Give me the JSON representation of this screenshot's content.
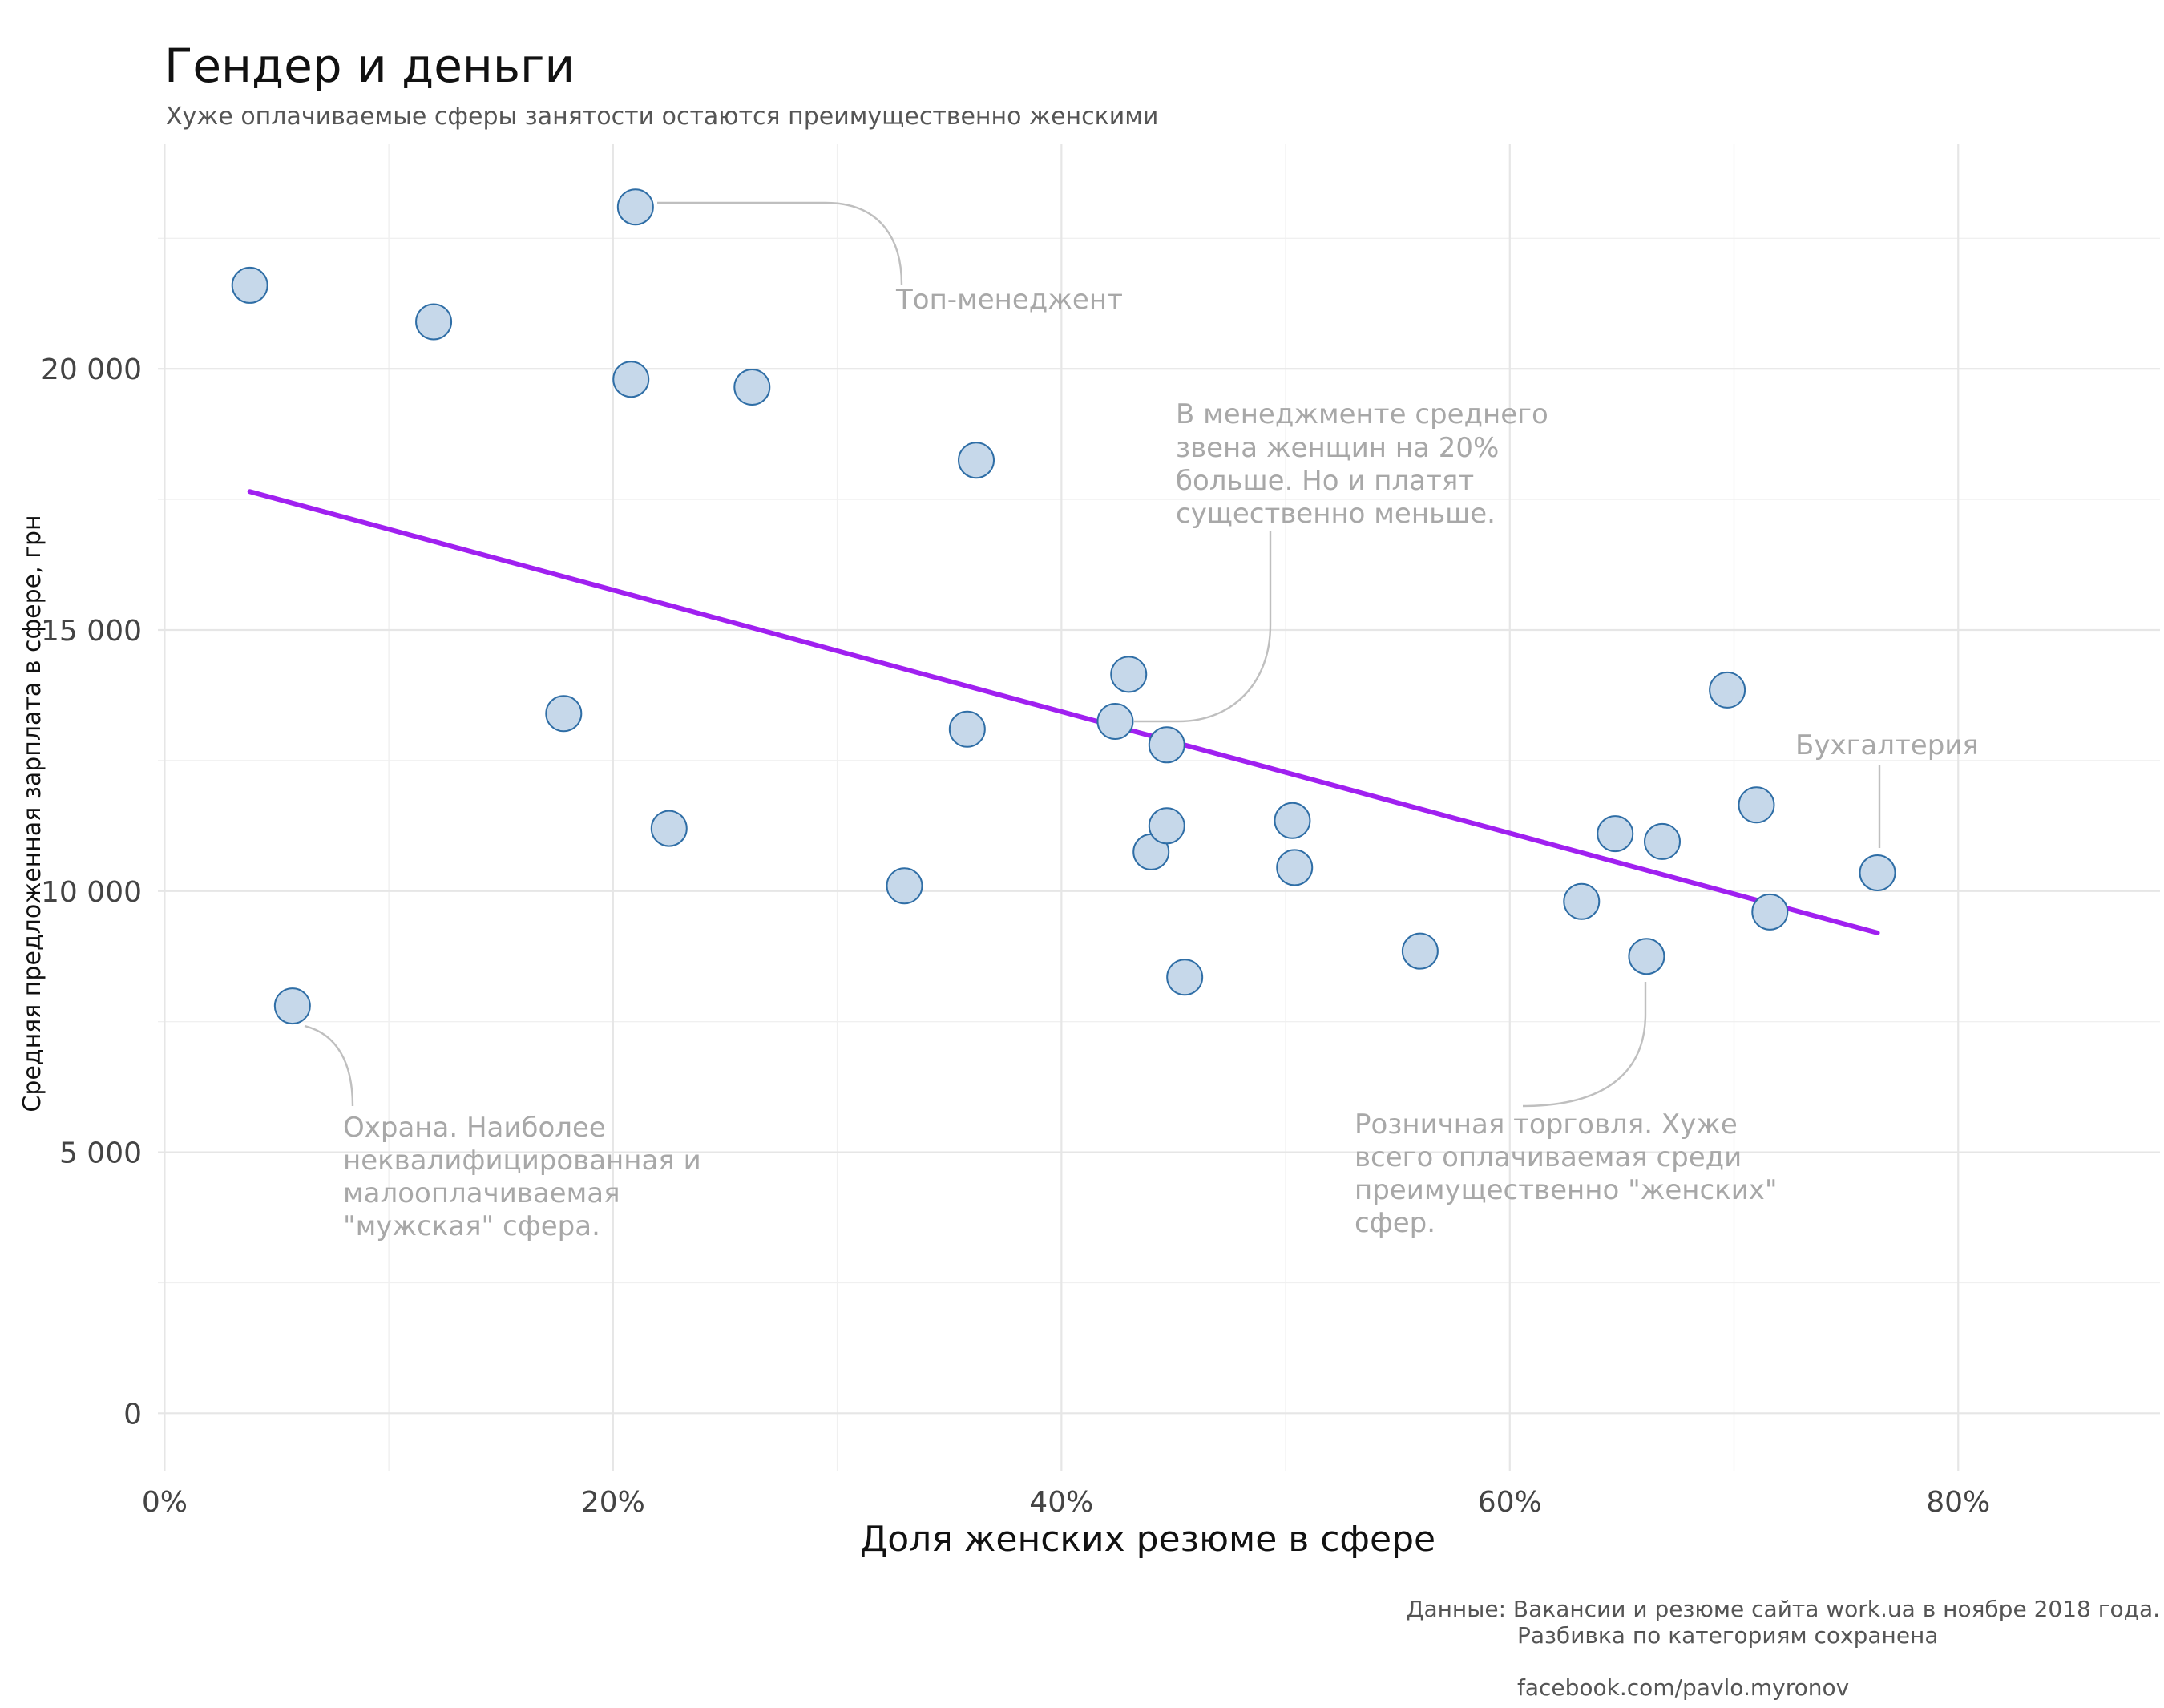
{
  "chart_data": {
    "type": "scatter",
    "title": "Гендер и деньги",
    "subtitle": "Хуже оплачиваемые сферы занятости остаются преимущественно женскими",
    "xlabel": "Доля женских резюме в сфере",
    "ylabel": "Средняя предложенная зарплата в сфере, грн",
    "xlim": [
      -0.003,
      0.89
    ],
    "ylim": [
      -1100,
      24300
    ],
    "x_ticks": [
      0,
      0.2,
      0.4,
      0.6,
      0.8
    ],
    "x_tick_labels": [
      "0%",
      "20%",
      "40%",
      "60%",
      "80%"
    ],
    "y_ticks": [
      0,
      5000,
      10000,
      15000,
      20000
    ],
    "y_tick_labels": [
      "0",
      "5 000",
      "10 000",
      "15 000",
      "20 000"
    ],
    "grid": true,
    "points": [
      {
        "x": 0.038,
        "y": 21600
      },
      {
        "x": 0.057,
        "y": 7800
      },
      {
        "x": 0.12,
        "y": 20900
      },
      {
        "x": 0.178,
        "y": 13400
      },
      {
        "x": 0.208,
        "y": 19800
      },
      {
        "x": 0.21,
        "y": 23100
      },
      {
        "x": 0.225,
        "y": 11200
      },
      {
        "x": 0.262,
        "y": 19650
      },
      {
        "x": 0.33,
        "y": 10100
      },
      {
        "x": 0.358,
        "y": 13100
      },
      {
        "x": 0.362,
        "y": 18250
      },
      {
        "x": 0.424,
        "y": 13250
      },
      {
        "x": 0.43,
        "y": 14150
      },
      {
        "x": 0.44,
        "y": 10750
      },
      {
        "x": 0.447,
        "y": 11250
      },
      {
        "x": 0.447,
        "y": 12800
      },
      {
        "x": 0.455,
        "y": 8350
      },
      {
        "x": 0.503,
        "y": 11350
      },
      {
        "x": 0.504,
        "y": 10450
      },
      {
        "x": 0.56,
        "y": 8850
      },
      {
        "x": 0.632,
        "y": 9800
      },
      {
        "x": 0.647,
        "y": 11100
      },
      {
        "x": 0.661,
        "y": 8750
      },
      {
        "x": 0.668,
        "y": 10950
      },
      {
        "x": 0.697,
        "y": 13850
      },
      {
        "x": 0.71,
        "y": 11650
      },
      {
        "x": 0.716,
        "y": 9600
      },
      {
        "x": 0.764,
        "y": 10350
      }
    ],
    "trend_line": {
      "x": [
        0.038,
        0.764
      ],
      "y": [
        17650,
        9200
      ],
      "color": "#a020f0"
    },
    "point_fill": "#c6d8ea",
    "point_stroke": "#2f6ea6",
    "annotations": [
      {
        "lines": [
          "Топ-менеджент"
        ],
        "point_index": 5
      },
      {
        "lines": [
          "В менеджменте среднего",
          "звена женщин на 20%",
          "больше. Но и платят",
          "существенно меньше."
        ],
        "point_index": 11
      },
      {
        "lines": [
          "Бухгалтерия"
        ],
        "point_index": 27
      },
      {
        "lines": [
          "Охрана. Наиболее",
          "неквалифицированная и",
          "малооплачиваемая",
          "\"мужская\" сфера."
        ],
        "point_index": 1
      },
      {
        "lines": [
          "Розничная торговля. Хуже",
          "всего оплачиваемая среди",
          "преимущественно \"женских\"",
          "сфер."
        ],
        "point_index": 22
      }
    ],
    "caption": {
      "line1": "Данные: Вакансии и резюме сайта work.ua в ноябре 2018 года.",
      "line2": "Разбивка по категориям сохранена",
      "line3": "facebook.com/pavlo.myronov"
    }
  }
}
